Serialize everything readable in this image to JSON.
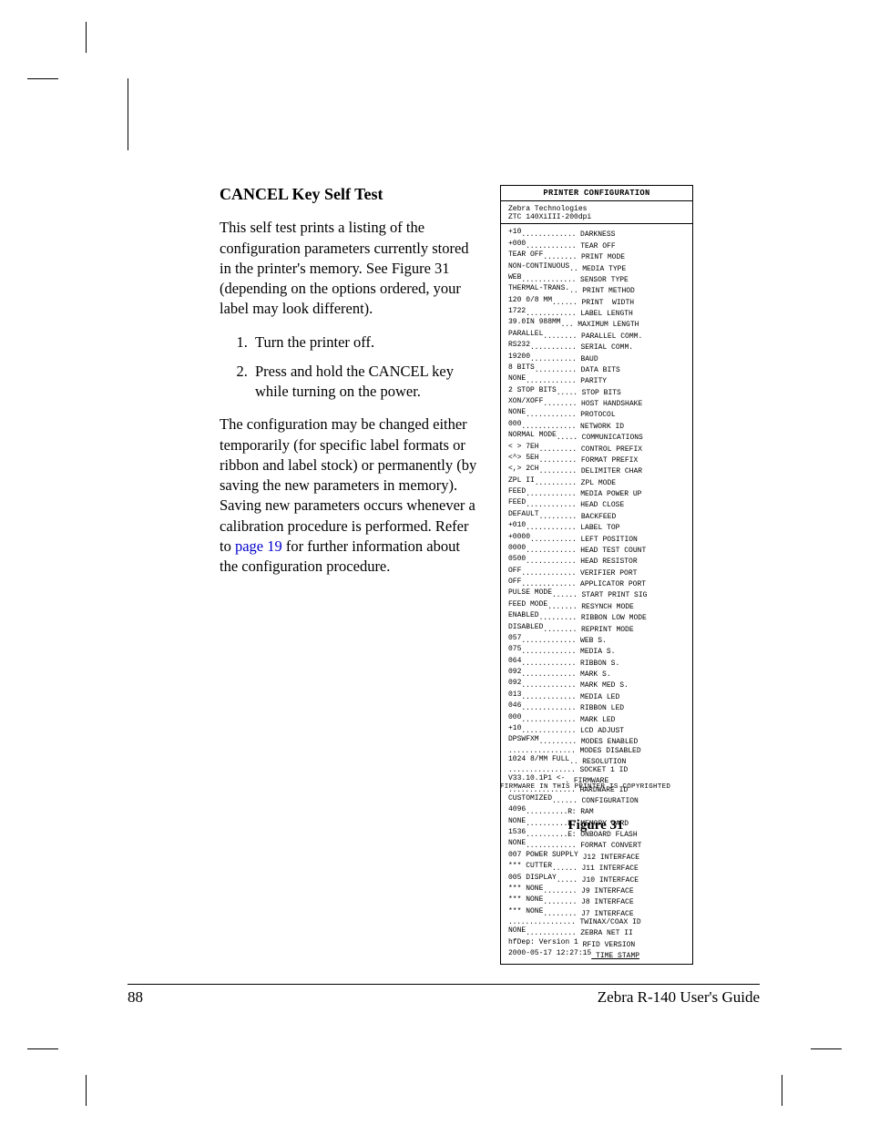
{
  "page": {
    "number": "88",
    "guide_title": "Zebra R-140 User's Guide"
  },
  "heading": "CANCEL Key Self Test",
  "paragraphs": {
    "intro": "This self test prints a listing of the configuration parameters currently stored in the printer's memory.  See Figure 31 (depending on the options ordered, your label may look different).",
    "config_change_a": "The configuration may be changed either temporarily (for specific label formats or ribbon and label stock) or permanently (by saving the new parameters in memory).  Saving new parameters occurs whenever a calibration procedure is performed.  Refer to ",
    "config_change_link": "page 19",
    "config_change_b": " for further information about the configuration procedure."
  },
  "steps": [
    "Turn the printer off.",
    "Press and hold the CANCEL key while turning on the power."
  ],
  "figure": {
    "caption": "Figure 31",
    "copyright": "FIRMWARE IN THIS PRINTER IS COPYRIGHTED",
    "title": "PRINTER CONFIGURATION",
    "id_line1": "Zebra Technologies",
    "id_line2": "ZTC 140XiIII-200dpi",
    "value_col_chars": 16,
    "rows": [
      {
        "v": "+10",
        "k": "DARKNESS"
      },
      {
        "v": "+000",
        "k": "TEAR OFF"
      },
      {
        "v": "TEAR OFF",
        "k": "PRINT MODE"
      },
      {
        "v": "NON-CONTINUOUS",
        "k": "MEDIA TYPE"
      },
      {
        "v": "WEB",
        "k": "SENSOR TYPE"
      },
      {
        "v": "THERMAL-TRANS.",
        "k": "PRINT METHOD"
      },
      {
        "v": "120 0/8 MM",
        "k": "PRINT  WIDTH"
      },
      {
        "v": "1722",
        "k": "LABEL LENGTH"
      },
      {
        "v": "39.0IN  988MM",
        "k": "MAXIMUM LENGTH"
      },
      {
        "v": "PARALLEL",
        "k": "PARALLEL COMM."
      },
      {
        "v": "RS232",
        "k": "SERIAL COMM."
      },
      {
        "v": "19200",
        "k": "BAUD"
      },
      {
        "v": "8 BITS",
        "k": "DATA BITS"
      },
      {
        "v": "NONE",
        "k": "PARITY"
      },
      {
        "v": "2 STOP BITS",
        "k": "STOP BITS"
      },
      {
        "v": "XON/XOFF",
        "k": "HOST HANDSHAKE"
      },
      {
        "v": "NONE",
        "k": "PROTOCOL"
      },
      {
        "v": "000",
        "k": "NETWORK ID"
      },
      {
        "v": "NORMAL MODE",
        "k": "COMMUNICATIONS"
      },
      {
        "v": "< > 7EH",
        "k": "CONTROL PREFIX"
      },
      {
        "v": "<^> 5EH",
        "k": "FORMAT PREFIX"
      },
      {
        "v": "<,> 2CH",
        "k": "DELIMITER CHAR"
      },
      {
        "v": "ZPL II",
        "k": "ZPL MODE"
      },
      {
        "v": "FEED",
        "k": "MEDIA POWER UP"
      },
      {
        "v": "FEED",
        "k": "HEAD CLOSE"
      },
      {
        "v": "DEFAULT",
        "k": "BACKFEED"
      },
      {
        "v": "+010",
        "k": "LABEL TOP"
      },
      {
        "v": "+0000",
        "k": "LEFT POSITION"
      },
      {
        "v": "0000",
        "k": "HEAD TEST COUNT"
      },
      {
        "v": "0500",
        "k": "HEAD RESISTOR"
      },
      {
        "v": "OFF",
        "k": "VERIFIER PORT"
      },
      {
        "v": "OFF",
        "k": "APPLICATOR PORT"
      },
      {
        "v": "PULSE MODE",
        "k": "START PRINT SIG"
      },
      {
        "v": "FEED MODE",
        "k": "RESYNCH MODE"
      },
      {
        "v": "ENABLED",
        "k": "RIBBON LOW MODE"
      },
      {
        "v": "DISABLED",
        "k": "REPRINT MODE"
      },
      {
        "v": "057",
        "k": "WEB S."
      },
      {
        "v": "075",
        "k": "MEDIA S."
      },
      {
        "v": "064",
        "k": "RIBBON S."
      },
      {
        "v": "092",
        "k": "MARK S."
      },
      {
        "v": "092",
        "k": "MARK MED S."
      },
      {
        "v": "013",
        "k": "MEDIA LED"
      },
      {
        "v": "046",
        "k": "RIBBON LED"
      },
      {
        "v": "000",
        "k": "MARK LED"
      },
      {
        "v": "+10",
        "k": "LCD ADJUST"
      },
      {
        "v": "DPSWFXM",
        "k": "MODES ENABLED"
      },
      {
        "v": "",
        "k": "MODES DISABLED"
      },
      {
        "v": "1024 8/MM FULL",
        "k": "RESOLUTION"
      },
      {
        "v": "",
        "k": "SOCKET 1 ID"
      },
      {
        "v": "V33.10.1P1   <-",
        "k": "FIRMWARE"
      },
      {
        "v": "",
        "k": "HARDWARE ID"
      },
      {
        "v": "CUSTOMIZED",
        "k": "CONFIGURATION"
      },
      {
        "v": "4096",
        "t": "R:",
        "k": "RAM"
      },
      {
        "v": "NONE",
        "t": "B:",
        "k": "MEMORY CARD"
      },
      {
        "v": "1536",
        "t": "E:",
        "k": "ONBOARD FLASH"
      },
      {
        "v": "NONE",
        "k": "FORMAT CONVERT"
      },
      {
        "v": "007 POWER SUPPLY",
        "k": "J12 INTERFACE"
      },
      {
        "v": "*** CUTTER",
        "k": "J11 INTERFACE"
      },
      {
        "v": "005 DISPLAY",
        "k": "J10 INTERFACE"
      },
      {
        "v": "*** NONE",
        "k": "J9 INTERFACE"
      },
      {
        "v": "*** NONE",
        "k": "J8 INTERFACE"
      },
      {
        "v": "*** NONE",
        "k": "J7 INTERFACE"
      },
      {
        "v": "",
        "k": "TWINAX/COAX ID"
      },
      {
        "v": "NONE",
        "k": "ZEBRA NET II"
      },
      {
        "v": "hfDep: Version 1",
        "k": "RFID VERSION"
      },
      {
        "v": "2000-05-17 12:27:15",
        "k": "TIME STAMP",
        "u": true,
        "nodots": true
      }
    ]
  },
  "colors": {
    "text": "#000000",
    "link": "#0000cc",
    "background": "#ffffff"
  }
}
